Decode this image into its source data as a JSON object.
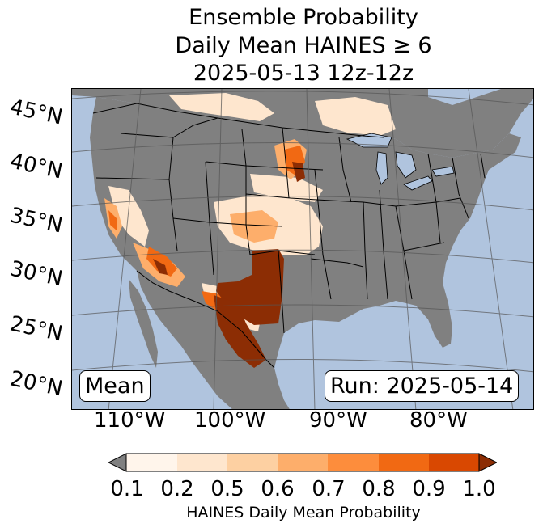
{
  "title": {
    "line1": "Ensemble Probability",
    "line2": "Daily Mean HAINES ≥ 6",
    "line3": "2025-05-13 12z-12z"
  },
  "map": {
    "latitude_labels": [
      "45°N",
      "40°N",
      "35°N",
      "30°N",
      "25°N",
      "20°N"
    ],
    "longitude_labels": [
      "110°W",
      "100°W",
      "90°W",
      "80°W"
    ],
    "mean_label": "Mean",
    "run_label": "Run: 2025-05-14",
    "colors": {
      "ocean": "#b0c4de",
      "land_below_threshold": "#808080",
      "border": "#000000"
    }
  },
  "colorbar": {
    "tick_labels": [
      "0.1",
      "0.2",
      "0.5",
      "0.6",
      "0.7",
      "0.8",
      "0.9",
      "1.0"
    ],
    "bins": [
      {
        "range": "0.1-0.2",
        "color": "#fff5eb"
      },
      {
        "range": "0.2-0.5",
        "color": "#fee6ce"
      },
      {
        "range": "0.5-0.6",
        "color": "#fdd0a2"
      },
      {
        "range": "0.6-0.7",
        "color": "#fdae6b"
      },
      {
        "range": "0.7-0.8",
        "color": "#fd8d3c"
      },
      {
        "range": "0.8-0.9",
        "color": "#f16913"
      },
      {
        "range": "0.9-1.0",
        "color": "#d94801"
      }
    ],
    "under_color": "#808080",
    "over_color": "#8c2d04",
    "label": "HAINES Daily Mean Probability"
  }
}
